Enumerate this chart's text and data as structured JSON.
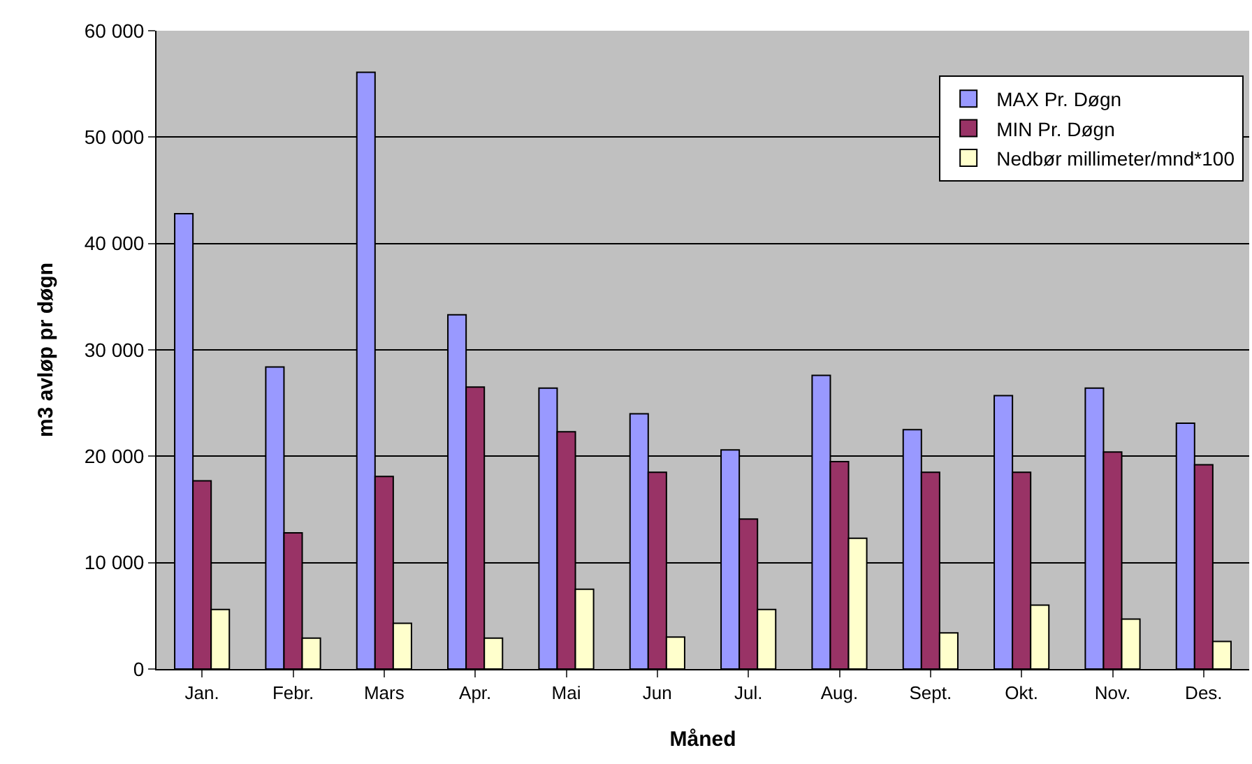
{
  "chart_data": {
    "type": "bar",
    "xlabel": "Måned",
    "ylabel": "m3 avløp pr døgn",
    "categories": [
      "Jan.",
      "Febr.",
      "Mars",
      "Apr.",
      "Mai",
      "Jun",
      "Jul.",
      "Aug.",
      "Sept.",
      "Okt.",
      "Nov.",
      "Des."
    ],
    "series": [
      {
        "name": "MAX Pr. Døgn",
        "color": "#9999ff",
        "values": [
          42800,
          28400,
          56100,
          33300,
          26400,
          24000,
          20600,
          27600,
          22500,
          25700,
          26400,
          23100
        ]
      },
      {
        "name": "MIN Pr. Døgn",
        "color": "#993366",
        "values": [
          17700,
          12800,
          18100,
          26500,
          22300,
          18500,
          14100,
          19500,
          18500,
          18500,
          20400,
          19200
        ]
      },
      {
        "name": "Nedbør millimeter/mnd*100",
        "color": "#ffffcc",
        "values": [
          5600,
          2900,
          4300,
          2900,
          7500,
          3000,
          5600,
          12300,
          3400,
          6000,
          4700,
          2600
        ]
      }
    ],
    "ylim": [
      0,
      60000
    ],
    "yticks": [
      0,
      {
        "value": 10000,
        "label": "10 000"
      },
      {
        "value": 20000,
        "label": "20 000"
      },
      {
        "value": 30000,
        "label": "30 000"
      },
      {
        "value": 40000,
        "label": "40 000"
      },
      {
        "value": 50000,
        "label": "50 000"
      },
      {
        "value": 60000,
        "label": "60 000"
      }
    ],
    "grid": "y",
    "legend": "top right"
  }
}
